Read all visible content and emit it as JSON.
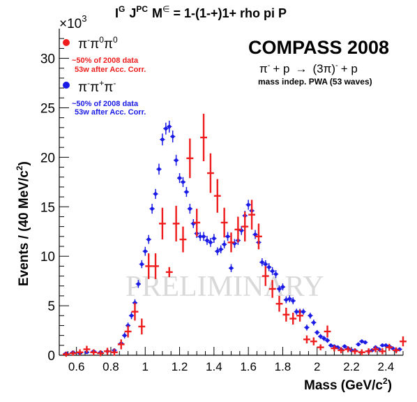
{
  "chart_data": {
    "type": "scatter",
    "title_parts": {
      "i": "I",
      "g": "G",
      "j": "J",
      "pc": "PC",
      "m": "M",
      "eps": "∈",
      "rest": "= 1-(1-+)1+ rho pi P"
    },
    "experiment": "COMPASS 2008",
    "reaction": {
      "pi": "π",
      "minus": "-",
      "plus_p": "+ p",
      "arrow": "→",
      "three_pi": "(3π)",
      "sup_minus": "-",
      "tail": "+ p"
    },
    "pwa_note": "mass indep. PWA (53 waves)",
    "watermark": "PRELIMINARY",
    "xlabel": "Mass (GeV/c²)",
    "xlabel_parts": {
      "main": "Mass (GeV/c",
      "sup": "2",
      "close": ")"
    },
    "ylabel": "Events / (40 MeV/c²)",
    "ylabel_parts": {
      "main": "Events / (40 MeV/c",
      "sup": "2",
      "close": ")"
    },
    "y_multiplier": {
      "times": "×10",
      "exp": "3"
    },
    "xlim": [
      0.5,
      2.5
    ],
    "ylim": [
      0,
      33
    ],
    "x_ticks": [
      "0.6",
      "0.8",
      "1",
      "1.2",
      "1.4",
      "1.6",
      "1.8",
      "2",
      "2.2",
      "2.4"
    ],
    "x_tick_values": [
      0.6,
      0.8,
      1.0,
      1.2,
      1.4,
      1.6,
      1.8,
      2.0,
      2.2,
      2.4
    ],
    "y_ticks": [
      "0",
      "5",
      "10",
      "15",
      "20",
      "25",
      "30"
    ],
    "y_tick_values": [
      0,
      5,
      10,
      15,
      20,
      25,
      30
    ],
    "grid": false,
    "legend_position": "top-left",
    "colors": {
      "neutral": "#ee1c1c",
      "charged": "#1a1ae6",
      "axis": "#000000",
      "watermark": "#d9d9d9"
    },
    "series": [
      {
        "name": "π⁻π⁰π⁰",
        "legend_parts": [
          "π",
          "-",
          "π",
          "0",
          "π",
          "0"
        ],
        "notes": [
          "~50% of 2008 data",
          "53w after Acc. Corr."
        ],
        "color": "#ee1c1c",
        "marker": "cross",
        "points": [
          {
            "x": 0.54,
            "y": 0.1,
            "e": 0.25
          },
          {
            "x": 0.58,
            "y": 0.2,
            "e": 0.25
          },
          {
            "x": 0.62,
            "y": 0.3,
            "e": 0.3
          },
          {
            "x": 0.66,
            "y": 0.6,
            "e": 0.35
          },
          {
            "x": 0.7,
            "y": 0.3,
            "e": 0.3
          },
          {
            "x": 0.74,
            "y": 0.2,
            "e": 0.3
          },
          {
            "x": 0.78,
            "y": 0.4,
            "e": 0.35
          },
          {
            "x": 0.82,
            "y": 0.3,
            "e": 0.35
          },
          {
            "x": 0.86,
            "y": 1.1,
            "e": 0.5
          },
          {
            "x": 0.9,
            "y": 2.4,
            "e": 0.6
          },
          {
            "x": 0.94,
            "y": 4.4,
            "e": 0.9
          },
          {
            "x": 0.98,
            "y": 2.9,
            "e": 0.8
          },
          {
            "x": 1.02,
            "y": 9.0,
            "e": 1.3
          },
          {
            "x": 1.06,
            "y": 9.0,
            "e": 1.3
          },
          {
            "x": 1.1,
            "y": 13.3,
            "e": 1.6
          },
          {
            "x": 1.14,
            "y": 8.4,
            "e": 0.5
          },
          {
            "x": 1.18,
            "y": 13.3,
            "e": 1.8
          },
          {
            "x": 1.22,
            "y": 11.7,
            "e": 1.3
          },
          {
            "x": 1.26,
            "y": 19.9,
            "e": 2.0
          },
          {
            "x": 1.3,
            "y": 13.4,
            "e": 1.4
          },
          {
            "x": 1.34,
            "y": 22.0,
            "e": 2.4
          },
          {
            "x": 1.38,
            "y": 18.4,
            "e": 2.0
          },
          {
            "x": 1.42,
            "y": 16.1,
            "e": 1.7
          },
          {
            "x": 1.46,
            "y": 13.4,
            "e": 1.5
          },
          {
            "x": 1.5,
            "y": 11.4,
            "e": 1.0
          },
          {
            "x": 1.54,
            "y": 12.7,
            "e": 1.3
          },
          {
            "x": 1.58,
            "y": 13.0,
            "e": 1.5
          },
          {
            "x": 1.62,
            "y": 14.2,
            "e": 1.5
          },
          {
            "x": 1.66,
            "y": 12.0,
            "e": 1.3
          },
          {
            "x": 1.7,
            "y": 8.0,
            "e": 1.0
          },
          {
            "x": 1.74,
            "y": 6.7,
            "e": 0.9
          },
          {
            "x": 1.78,
            "y": 5.2,
            "e": 0.8
          },
          {
            "x": 1.82,
            "y": 4.1,
            "e": 0.7
          },
          {
            "x": 1.86,
            "y": 3.7,
            "e": 0.6
          },
          {
            "x": 1.9,
            "y": 4.0,
            "e": 0.6
          },
          {
            "x": 1.94,
            "y": 1.6,
            "e": 0.4
          },
          {
            "x": 1.98,
            "y": 1.4,
            "e": 0.4
          },
          {
            "x": 2.02,
            "y": 0.8,
            "e": 0.3
          },
          {
            "x": 2.06,
            "y": 2.4,
            "e": 0.6
          },
          {
            "x": 2.1,
            "y": 0.7,
            "e": 0.3
          },
          {
            "x": 2.14,
            "y": 0.5,
            "e": 0.3
          },
          {
            "x": 2.18,
            "y": 0.6,
            "e": 0.3
          },
          {
            "x": 2.22,
            "y": 0.4,
            "e": 0.3
          },
          {
            "x": 2.26,
            "y": 0.3,
            "e": 0.3
          },
          {
            "x": 2.3,
            "y": 0.4,
            "e": 0.3
          },
          {
            "x": 2.34,
            "y": 0.6,
            "e": 0.3
          },
          {
            "x": 2.38,
            "y": 0.4,
            "e": 0.3
          },
          {
            "x": 2.42,
            "y": 0.8,
            "e": 0.35
          },
          {
            "x": 2.46,
            "y": 0.5,
            "e": 0.3
          },
          {
            "x": 2.5,
            "y": 1.4,
            "e": 0.5
          }
        ]
      },
      {
        "name": "π⁻π⁺π⁻",
        "legend_parts": [
          "π",
          "-",
          "π",
          "+",
          "π",
          "-"
        ],
        "notes": [
          "~50% of 2008 data",
          "53w after Acc. Corr."
        ],
        "color": "#1a1ae6",
        "marker": "dot",
        "points": [
          {
            "x": 0.54,
            "y": 0.2,
            "e": 0.15
          },
          {
            "x": 0.58,
            "y": 0.3,
            "e": 0.15
          },
          {
            "x": 0.62,
            "y": 0.2,
            "e": 0.15
          },
          {
            "x": 0.66,
            "y": 0.3,
            "e": 0.15
          },
          {
            "x": 0.7,
            "y": 0.4,
            "e": 0.15
          },
          {
            "x": 0.74,
            "y": 0.3,
            "e": 0.15
          },
          {
            "x": 0.78,
            "y": 0.4,
            "e": 0.2
          },
          {
            "x": 0.82,
            "y": 0.5,
            "e": 0.2
          },
          {
            "x": 0.86,
            "y": 1.2,
            "e": 0.25
          },
          {
            "x": 0.88,
            "y": 2.0,
            "e": 0.3
          },
          {
            "x": 0.9,
            "y": 3.0,
            "e": 0.3
          },
          {
            "x": 0.92,
            "y": 4.0,
            "e": 0.35
          },
          {
            "x": 0.94,
            "y": 5.3,
            "e": 0.35
          },
          {
            "x": 0.96,
            "y": 7.2,
            "e": 0.4
          },
          {
            "x": 0.98,
            "y": 9.2,
            "e": 0.4
          },
          {
            "x": 1.0,
            "y": 10.5,
            "e": 0.45
          },
          {
            "x": 1.02,
            "y": 11.7,
            "e": 0.45
          },
          {
            "x": 1.04,
            "y": 14.8,
            "e": 0.5
          },
          {
            "x": 1.06,
            "y": 16.3,
            "e": 0.5
          },
          {
            "x": 1.08,
            "y": 18.8,
            "e": 0.55
          },
          {
            "x": 1.1,
            "y": 21.8,
            "e": 0.6
          },
          {
            "x": 1.12,
            "y": 22.9,
            "e": 0.6
          },
          {
            "x": 1.14,
            "y": 23.1,
            "e": 0.6
          },
          {
            "x": 1.16,
            "y": 22.1,
            "e": 0.6
          },
          {
            "x": 1.18,
            "y": 19.7,
            "e": 0.55
          },
          {
            "x": 1.2,
            "y": 17.9,
            "e": 0.5
          },
          {
            "x": 1.22,
            "y": 17.5,
            "e": 0.5
          },
          {
            "x": 1.24,
            "y": 16.5,
            "e": 0.5
          },
          {
            "x": 1.26,
            "y": 14.8,
            "e": 0.5
          },
          {
            "x": 1.28,
            "y": 13.3,
            "e": 0.45
          },
          {
            "x": 1.3,
            "y": 12.3,
            "e": 0.45
          },
          {
            "x": 1.32,
            "y": 12.0,
            "e": 0.45
          },
          {
            "x": 1.34,
            "y": 12.0,
            "e": 0.45
          },
          {
            "x": 1.36,
            "y": 11.6,
            "e": 0.45
          },
          {
            "x": 1.38,
            "y": 11.4,
            "e": 0.45
          },
          {
            "x": 1.4,
            "y": 11.8,
            "e": 0.45
          },
          {
            "x": 1.42,
            "y": 10.5,
            "e": 0.4
          },
          {
            "x": 1.44,
            "y": 10.7,
            "e": 0.4
          },
          {
            "x": 1.46,
            "y": 11.2,
            "e": 0.4
          },
          {
            "x": 1.48,
            "y": 12.0,
            "e": 0.45
          },
          {
            "x": 1.5,
            "y": 8.8,
            "e": 0.4
          },
          {
            "x": 1.52,
            "y": 11.3,
            "e": 0.45
          },
          {
            "x": 1.54,
            "y": 11.6,
            "e": 0.45
          },
          {
            "x": 1.56,
            "y": 12.6,
            "e": 0.45
          },
          {
            "x": 1.58,
            "y": 14.1,
            "e": 0.5
          },
          {
            "x": 1.6,
            "y": 15.2,
            "e": 0.5
          },
          {
            "x": 1.62,
            "y": 14.6,
            "e": 0.5
          },
          {
            "x": 1.64,
            "y": 12.2,
            "e": 0.45
          },
          {
            "x": 1.66,
            "y": 11.4,
            "e": 0.45
          },
          {
            "x": 1.68,
            "y": 9.4,
            "e": 0.4
          },
          {
            "x": 1.7,
            "y": 9.2,
            "e": 0.4
          },
          {
            "x": 1.72,
            "y": 8.9,
            "e": 0.4
          },
          {
            "x": 1.74,
            "y": 8.5,
            "e": 0.4
          },
          {
            "x": 1.76,
            "y": 8.2,
            "e": 0.4
          },
          {
            "x": 1.78,
            "y": 6.7,
            "e": 0.35
          },
          {
            "x": 1.8,
            "y": 6.9,
            "e": 0.35
          },
          {
            "x": 1.82,
            "y": 5.6,
            "e": 0.35
          },
          {
            "x": 1.84,
            "y": 5.7,
            "e": 0.35
          },
          {
            "x": 1.86,
            "y": 5.5,
            "e": 0.35
          },
          {
            "x": 1.88,
            "y": 4.4,
            "e": 0.3
          },
          {
            "x": 1.9,
            "y": 4.4,
            "e": 0.3
          },
          {
            "x": 1.92,
            "y": 4.4,
            "e": 0.3
          },
          {
            "x": 1.94,
            "y": 2.8,
            "e": 0.3
          },
          {
            "x": 1.96,
            "y": 4.0,
            "e": 0.3
          },
          {
            "x": 1.98,
            "y": 3.3,
            "e": 0.3
          },
          {
            "x": 2.0,
            "y": 2.3,
            "e": 0.25
          },
          {
            "x": 2.02,
            "y": 1.9,
            "e": 0.25
          },
          {
            "x": 2.04,
            "y": 1.7,
            "e": 0.25
          },
          {
            "x": 2.06,
            "y": 1.5,
            "e": 0.25
          },
          {
            "x": 2.08,
            "y": 1.0,
            "e": 0.2
          },
          {
            "x": 2.1,
            "y": 0.9,
            "e": 0.2
          },
          {
            "x": 2.12,
            "y": 0.8,
            "e": 0.2
          },
          {
            "x": 2.14,
            "y": 0.6,
            "e": 0.2
          },
          {
            "x": 2.16,
            "y": 0.9,
            "e": 0.2
          },
          {
            "x": 2.18,
            "y": 0.7,
            "e": 0.2
          },
          {
            "x": 2.2,
            "y": 0.5,
            "e": 0.2
          },
          {
            "x": 2.22,
            "y": 0.5,
            "e": 0.2
          },
          {
            "x": 2.24,
            "y": 1.1,
            "e": 0.2
          },
          {
            "x": 2.26,
            "y": 1.4,
            "e": 0.2
          },
          {
            "x": 2.28,
            "y": 1.3,
            "e": 0.2
          },
          {
            "x": 2.3,
            "y": 0.4,
            "e": 0.2
          },
          {
            "x": 2.32,
            "y": 0.5,
            "e": 0.2
          },
          {
            "x": 2.34,
            "y": 0.8,
            "e": 0.2
          },
          {
            "x": 2.36,
            "y": 0.6,
            "e": 0.2
          },
          {
            "x": 2.38,
            "y": 1.0,
            "e": 0.2
          },
          {
            "x": 2.4,
            "y": 1.0,
            "e": 0.2
          },
          {
            "x": 2.42,
            "y": 0.9,
            "e": 0.2
          },
          {
            "x": 2.44,
            "y": 0.7,
            "e": 0.2
          },
          {
            "x": 2.46,
            "y": 0.5,
            "e": 0.2
          },
          {
            "x": 2.48,
            "y": 0.6,
            "e": 0.2
          }
        ]
      }
    ]
  }
}
